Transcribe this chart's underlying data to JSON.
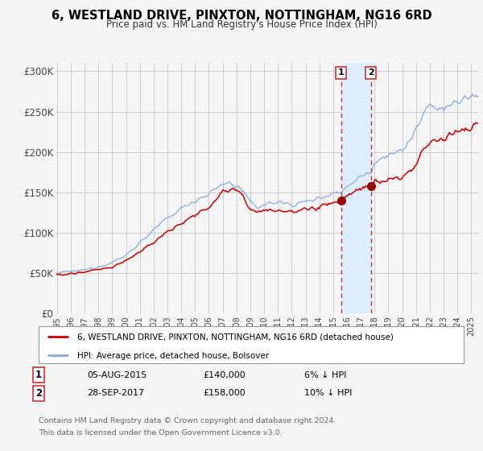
{
  "title": "6, WESTLAND DRIVE, PINXTON, NOTTINGHAM, NG16 6RD",
  "subtitle": "Price paid vs. HM Land Registry's House Price Index (HPI)",
  "legend_property": "6, WESTLAND DRIVE, PINXTON, NOTTINGHAM, NG16 6RD (detached house)",
  "legend_hpi": "HPI: Average price, detached house, Bolsover",
  "transaction1_date": "05-AUG-2015",
  "transaction1_price": 140000,
  "transaction1_note": "6% ↓ HPI",
  "transaction2_date": "28-SEP-2017",
  "transaction2_price": 158000,
  "transaction2_note": "10% ↓ HPI",
  "footer": "Contains HM Land Registry data © Crown copyright and database right 2024.\nThis data is licensed under the Open Government Licence v3.0.",
  "line_color_property": "#cc0000",
  "line_color_hpi": "#88aadd",
  "marker_color": "#990000",
  "vline_color": "#cc3333",
  "shade_color": "#ddeeff",
  "background_color": "#f5f5f5",
  "plot_bg_color": "#f5f5f5",
  "grid_color": "#cccccc",
  "tick_color": "#444444",
  "ylim": [
    0,
    310000
  ],
  "yticks": [
    0,
    50000,
    100000,
    150000,
    200000,
    250000,
    300000
  ],
  "xlim_start": 1994.9,
  "xlim_end": 2025.5,
  "transaction1_x": 2015.58,
  "transaction2_x": 2017.73,
  "hpi_control_x": [
    1995,
    1996,
    1997,
    1998,
    1999,
    2000,
    2001,
    2002,
    2003,
    2004,
    2005,
    2006,
    2007,
    2007.5,
    2008,
    2008.5,
    2009,
    2009.5,
    2010,
    2011,
    2012,
    2013,
    2014,
    2015,
    2015.58,
    2016,
    2017,
    2017.73,
    2018,
    2019,
    2020,
    2021,
    2022,
    2023,
    2024,
    2025,
    2025.5
  ],
  "hpi_control_y": [
    50000,
    52000,
    54000,
    58000,
    63000,
    72000,
    88000,
    103000,
    118000,
    130000,
    140000,
    148000,
    160000,
    162000,
    158000,
    152000,
    136000,
    132000,
    135000,
    138000,
    135000,
    138000,
    143000,
    150000,
    148936,
    158000,
    170000,
    175556,
    188000,
    198000,
    200000,
    228000,
    258000,
    253000,
    262000,
    268000,
    270000
  ],
  "prop_control_x": [
    1995,
    1996,
    1997,
    1998,
    1999,
    2000,
    2001,
    2002,
    2003,
    2004,
    2005,
    2006,
    2007,
    2007.5,
    2008,
    2008.5,
    2009,
    2009.5,
    2010,
    2011,
    2012,
    2013,
    2014,
    2015,
    2015.58,
    2016,
    2017,
    2017.73,
    2018,
    2019,
    2020,
    2021,
    2022,
    2023,
    2024,
    2025,
    2025.5
  ],
  "prop_control_y": [
    48000,
    49000,
    51000,
    54000,
    58000,
    65000,
    76000,
    88000,
    102000,
    112000,
    122000,
    130000,
    152000,
    155000,
    152000,
    145000,
    128000,
    124000,
    127000,
    128000,
    126000,
    128000,
    132000,
    137000,
    140000,
    147000,
    155000,
    158000,
    163000,
    168000,
    168000,
    185000,
    215000,
    218000,
    225000,
    232000,
    235000
  ]
}
